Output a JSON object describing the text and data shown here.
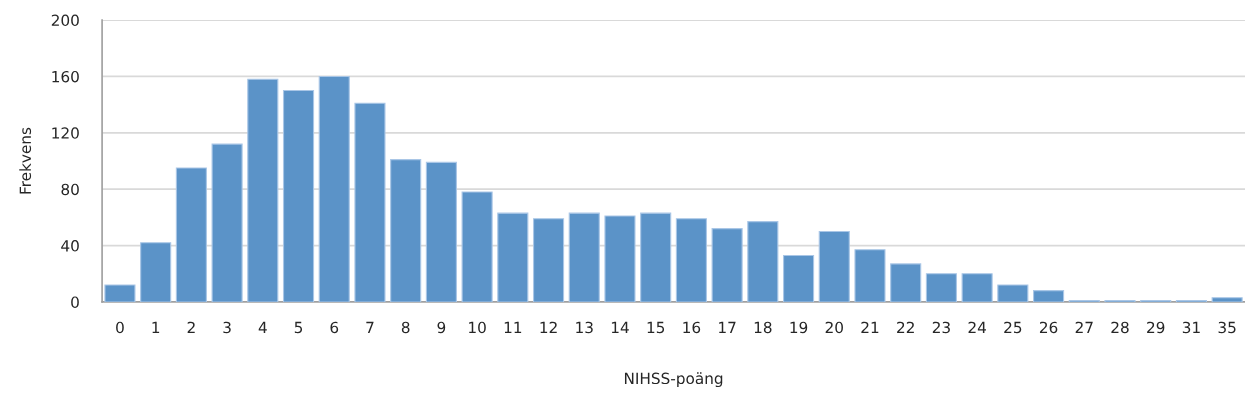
{
  "chart_data": {
    "type": "bar",
    "xlabel": "NIHSS-poäng",
    "ylabel": "Frekvens",
    "categories": [
      "0",
      "1",
      "2",
      "3",
      "4",
      "5",
      "6",
      "7",
      "8",
      "9",
      "10",
      "11",
      "12",
      "13",
      "14",
      "15",
      "16",
      "17",
      "18",
      "19",
      "20",
      "21",
      "22",
      "23",
      "24",
      "25",
      "26",
      "27",
      "28",
      "29",
      "31",
      "35"
    ],
    "values": [
      12,
      42,
      95,
      112,
      158,
      150,
      160,
      141,
      101,
      99,
      78,
      63,
      59,
      63,
      61,
      63,
      59,
      52,
      57,
      33,
      50,
      37,
      27,
      20,
      20,
      12,
      8,
      1,
      1,
      1,
      1,
      3
    ],
    "color": "#5b93c8",
    "ylim": [
      0,
      200
    ],
    "yticks": [
      0,
      40,
      80,
      120,
      160,
      200
    ],
    "grid": "y"
  }
}
